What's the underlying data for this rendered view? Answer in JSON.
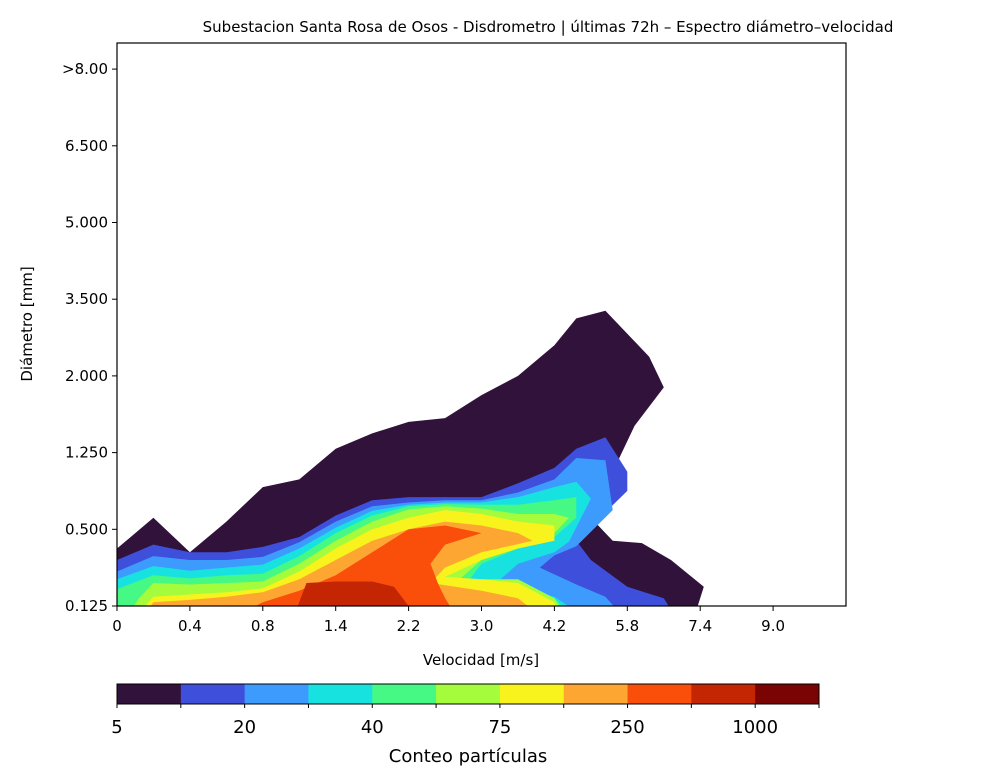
{
  "chart_data": {
    "type": "heatmap",
    "title": "Subestacion Santa Rosa de Osos - Disdrometro | últimas 72h – Espectro diámetro–velocidad",
    "xlabel": "Velocidad [m/s]",
    "ylabel": "Diámetro [mm]",
    "x_ticks": [
      "0",
      "0.4",
      "0.8",
      "1.4",
      "2.2",
      "3.0",
      "4.2",
      "5.8",
      "7.4",
      "9.0"
    ],
    "y_ticks": [
      "0.125",
      "0.500",
      "1.250",
      "2.000",
      "3.500",
      "5.000",
      "6.500",
      ">8.00"
    ],
    "grid": false,
    "colorbar": {
      "label": "Conteo partículas",
      "orientation": "horizontal",
      "position": "bottom",
      "tick_labels": [
        "5",
        "20",
        "40",
        "75",
        "250",
        "1000"
      ],
      "colors": [
        "#30123b",
        "#3e4fdb",
        "#3e9bfe",
        "#18e2e0",
        "#46f884",
        "#a4fc3c",
        "#f8f31c",
        "#fea632",
        "#fa4f0b",
        "#c42503",
        "#7a0403"
      ]
    },
    "contour_levels_by_tick_index": [
      {
        "level": 1,
        "boundary": [
          [
            -0.2,
            0.2
          ],
          [
            0,
            0.75
          ],
          [
            0.5,
            1.15
          ],
          [
            1,
            0.7
          ],
          [
            1.5,
            1.1
          ],
          [
            2,
            1.55
          ],
          [
            2.5,
            1.65
          ],
          [
            3,
            2.05
          ],
          [
            3.5,
            2.25
          ],
          [
            4,
            2.4
          ],
          [
            4.5,
            2.45
          ],
          [
            5,
            2.75
          ],
          [
            5.5,
            3.0
          ],
          [
            6,
            3.4
          ],
          [
            6.3,
            3.75
          ],
          [
            6.7,
            3.85
          ],
          [
            7.3,
            3.25
          ],
          [
            7.5,
            2.85
          ],
          [
            7.1,
            2.35
          ],
          [
            6.5,
            1.15
          ],
          [
            6.8,
            0.85
          ],
          [
            7.2,
            0.82
          ],
          [
            7.6,
            0.6
          ],
          [
            8.05,
            0.25
          ],
          [
            7.9,
            -0.2
          ]
        ]
      },
      {
        "level": 2,
        "boundary": [
          [
            -0.2,
            -0.2
          ],
          [
            0,
            0.6
          ],
          [
            0.5,
            0.8
          ],
          [
            1,
            0.7
          ],
          [
            1.5,
            0.7
          ],
          [
            2,
            0.77
          ],
          [
            2.5,
            0.9
          ],
          [
            3,
            1.18
          ],
          [
            3.5,
            1.38
          ],
          [
            4,
            1.42
          ],
          [
            4.5,
            1.42
          ],
          [
            5,
            1.42
          ],
          [
            5.5,
            1.6
          ],
          [
            6,
            1.8
          ],
          [
            6.3,
            2.05
          ],
          [
            6.7,
            2.2
          ],
          [
            7,
            1.75
          ],
          [
            7,
            1.5
          ],
          [
            6.3,
            0.85
          ],
          [
            6.5,
            0.6
          ],
          [
            7,
            0.25
          ],
          [
            7.5,
            0.1
          ],
          [
            7.7,
            -0.2
          ]
        ]
      },
      {
        "level": 3,
        "boundary": [
          [
            -0.2,
            -0.2
          ],
          [
            0,
            0.45
          ],
          [
            0.5,
            0.65
          ],
          [
            1,
            0.6
          ],
          [
            1.5,
            0.6
          ],
          [
            2,
            0.64
          ],
          [
            2.5,
            0.83
          ],
          [
            3,
            1.1
          ],
          [
            3.5,
            1.3
          ],
          [
            4,
            1.35
          ],
          [
            4.5,
            1.38
          ],
          [
            5,
            1.38
          ],
          [
            5.5,
            1.48
          ],
          [
            6,
            1.65
          ],
          [
            6.3,
            1.93
          ],
          [
            6.7,
            1.9
          ],
          [
            6.8,
            1.25
          ],
          [
            6.3,
            0.78
          ],
          [
            6,
            0.66
          ],
          [
            5.8,
            0.5
          ],
          [
            6.3,
            0.28
          ],
          [
            6.7,
            0.12
          ],
          [
            7,
            -0.2
          ]
        ]
      },
      {
        "level": 4,
        "boundary": [
          [
            -0.2,
            -0.2
          ],
          [
            0,
            0.35
          ],
          [
            0.5,
            0.52
          ],
          [
            1,
            0.46
          ],
          [
            1.5,
            0.5
          ],
          [
            2,
            0.54
          ],
          [
            2.5,
            0.75
          ],
          [
            3,
            1.02
          ],
          [
            3.5,
            1.24
          ],
          [
            4,
            1.32
          ],
          [
            4.5,
            1.35
          ],
          [
            5,
            1.35
          ],
          [
            5.5,
            1.42
          ],
          [
            6,
            1.55
          ],
          [
            6.3,
            1.62
          ],
          [
            6.5,
            1.4
          ],
          [
            6.2,
            0.84
          ],
          [
            6,
            0.7
          ],
          [
            5.5,
            0.55
          ],
          [
            5.2,
            0.3
          ],
          [
            5.5,
            0.25
          ],
          [
            6,
            0.12
          ],
          [
            6.5,
            -0.2
          ]
        ]
      },
      {
        "level": 5,
        "boundary": [
          [
            -0.2,
            -0.2
          ],
          [
            0,
            0.22
          ],
          [
            0.5,
            0.4
          ],
          [
            1,
            0.36
          ],
          [
            1.5,
            0.4
          ],
          [
            2,
            0.42
          ],
          [
            2.5,
            0.65
          ],
          [
            3,
            0.95
          ],
          [
            3.5,
            1.18
          ],
          [
            4,
            1.3
          ],
          [
            4.5,
            1.33
          ],
          [
            5,
            1.32
          ],
          [
            5.5,
            1.32
          ],
          [
            6,
            1.38
          ],
          [
            6.3,
            1.42
          ],
          [
            6.3,
            1.15
          ],
          [
            6,
            0.9
          ],
          [
            5.5,
            0.75
          ],
          [
            5,
            0.55
          ],
          [
            4.8,
            0.3
          ],
          [
            5.5,
            0.3
          ],
          [
            6,
            0.1
          ],
          [
            6.3,
            -0.2
          ]
        ]
      },
      {
        "level": 6,
        "boundary": [
          [
            0.1,
            -0.2
          ],
          [
            0.3,
            0.1
          ],
          [
            0.5,
            0.3
          ],
          [
            1,
            0.28
          ],
          [
            1.5,
            0.3
          ],
          [
            2,
            0.32
          ],
          [
            2.5,
            0.55
          ],
          [
            3,
            0.85
          ],
          [
            3.5,
            1.1
          ],
          [
            4,
            1.26
          ],
          [
            4.5,
            1.3
          ],
          [
            5,
            1.27
          ],
          [
            5.5,
            1.2
          ],
          [
            6,
            1.2
          ],
          [
            6.2,
            1.15
          ],
          [
            6,
            0.95
          ],
          [
            5.5,
            0.8
          ],
          [
            5,
            0.6
          ],
          [
            4.7,
            0.35
          ],
          [
            5.5,
            0.35
          ],
          [
            6,
            0.1
          ],
          [
            6.2,
            -0.2
          ]
        ]
      },
      {
        "level": 7,
        "boundary": [
          [
            0.2,
            -0.2
          ],
          [
            0.5,
            0.12
          ],
          [
            1,
            0.15
          ],
          [
            1.5,
            0.18
          ],
          [
            2,
            0.23
          ],
          [
            2.5,
            0.45
          ],
          [
            3,
            0.75
          ],
          [
            3.5,
            1.0
          ],
          [
            4,
            1.15
          ],
          [
            4.5,
            1.25
          ],
          [
            5,
            1.2
          ],
          [
            5.5,
            1.1
          ],
          [
            6,
            1.05
          ],
          [
            6,
            0.85
          ],
          [
            5.5,
            0.75
          ],
          [
            5,
            0.6
          ],
          [
            4.5,
            0.38
          ],
          [
            5,
            0.35
          ],
          [
            5.5,
            0.3
          ],
          [
            6,
            0.05
          ],
          [
            6.1,
            -0.2
          ]
        ]
      },
      {
        "level": 8,
        "boundary": [
          [
            0.3,
            -0.2
          ],
          [
            0.5,
            0.05
          ],
          [
            1,
            0.08
          ],
          [
            1.5,
            0.12
          ],
          [
            2,
            0.18
          ],
          [
            2.5,
            0.35
          ],
          [
            3,
            0.6
          ],
          [
            3.5,
            0.85
          ],
          [
            4,
            1.0
          ],
          [
            4.5,
            1.1
          ],
          [
            5,
            1.05
          ],
          [
            5.5,
            0.95
          ],
          [
            5.7,
            0.85
          ],
          [
            5,
            0.7
          ],
          [
            4.5,
            0.5
          ],
          [
            4.3,
            0.3
          ],
          [
            5,
            0.2
          ],
          [
            5.5,
            0.1
          ],
          [
            5.9,
            -0.2
          ]
        ]
      },
      {
        "level": 9,
        "boundary": [
          [
            1.5,
            -0.2
          ],
          [
            2,
            0.05
          ],
          [
            2.5,
            0.2
          ],
          [
            3,
            0.4
          ],
          [
            3.5,
            0.7
          ],
          [
            4,
            1.0
          ],
          [
            4.5,
            1.05
          ],
          [
            5,
            0.95
          ],
          [
            4.5,
            0.8
          ],
          [
            4.3,
            0.55
          ],
          [
            4.4,
            0.3
          ],
          [
            4.5,
            0.1
          ],
          [
            4.7,
            -0.2
          ]
        ]
      },
      {
        "level": 10,
        "boundary": [
          [
            2.4,
            -0.2
          ],
          [
            2.6,
            0.3
          ],
          [
            3,
            0.32
          ],
          [
            3.5,
            0.32
          ],
          [
            3.8,
            0.25
          ],
          [
            4,
            0
          ],
          [
            4.1,
            -0.2
          ]
        ]
      }
    ]
  }
}
